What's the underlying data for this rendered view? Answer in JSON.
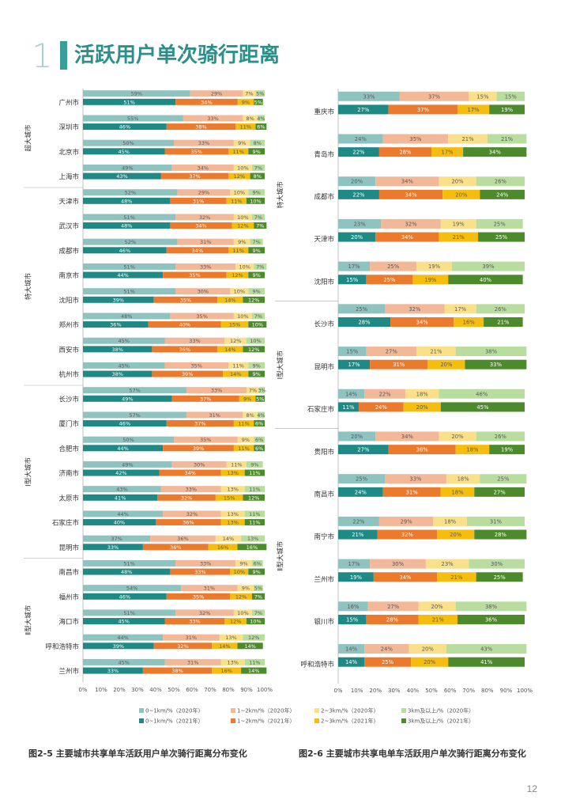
{
  "page": {
    "section_number": "1",
    "title": "活跃用户单次骑行距离",
    "page_number": "12",
    "caption_left": "图2-5 主要城市共享单车活跃用户单次骑行距离分布变化",
    "caption_right": "图2-6 主要城市共享电单车活跃用户单次骑行距离分布变化"
  },
  "chart_data": [
    {
      "type": "bar",
      "orientation": "horizontal",
      "stacked": true,
      "percent": true,
      "xlim": [
        0,
        100
      ],
      "x_ticks": [
        "0%",
        "10%",
        "20%",
        "30%",
        "40%",
        "50%",
        "60%",
        "70%",
        "80%",
        "90%",
        "100%"
      ],
      "series_labels_2020": [
        "0~1km/%（2020年）",
        "1~2km/%（2020年）",
        "2~3km/%（2020年）",
        "3km及以上/%（2020年）"
      ],
      "series_labels_2021": [
        "0~1km/%（2021年）",
        "1~2km/%（2021年）",
        "2~3km/%（2021年）",
        "3km及以上/%（2021年）"
      ],
      "colors_2020": [
        "#8ec3bf",
        "#f2b897",
        "#fbe08a",
        "#b9dc9f"
      ],
      "colors_2021": [
        "#1f8a85",
        "#ec7a2c",
        "#f5be0f",
        "#4d8a2b"
      ],
      "groups": [
        {
          "label": "超大城市",
          "cities": [
            {
              "name": "广州市",
              "y2020": [
                59,
                29,
                7,
                5
              ],
              "y2021": [
                51,
                34,
                9,
                5
              ]
            },
            {
              "name": "深圳市",
              "y2020": [
                55,
                33,
                8,
                4
              ],
              "y2021": [
                46,
                38,
                11,
                6
              ]
            },
            {
              "name": "北京市",
              "y2020": [
                50,
                33,
                9,
                8
              ],
              "y2021": [
                45,
                35,
                11,
                9
              ]
            },
            {
              "name": "上海市",
              "y2020": [
                49,
                34,
                10,
                7
              ],
              "y2021": [
                43,
                37,
                12,
                8
              ]
            }
          ]
        },
        {
          "label": "特大城市",
          "cities": [
            {
              "name": "天津市",
              "y2020": [
                52,
                29,
                10,
                9
              ],
              "y2021": [
                48,
                31,
                11,
                10
              ]
            },
            {
              "name": "武汉市",
              "y2020": [
                51,
                32,
                10,
                7
              ],
              "y2021": [
                48,
                34,
                12,
                7
              ]
            },
            {
              "name": "成都市",
              "y2020": [
                52,
                31,
                9,
                7
              ],
              "y2021": [
                46,
                34,
                11,
                9
              ]
            },
            {
              "name": "南京市",
              "y2020": [
                51,
                33,
                10,
                7
              ],
              "y2021": [
                44,
                35,
                12,
                9
              ]
            },
            {
              "name": "沈阳市",
              "y2020": [
                51,
                30,
                10,
                9
              ],
              "y2021": [
                39,
                35,
                14,
                12
              ]
            },
            {
              "name": "郑州市",
              "y2020": [
                48,
                35,
                10,
                7
              ],
              "y2021": [
                36,
                40,
                15,
                10
              ]
            },
            {
              "name": "西安市",
              "y2020": [
                45,
                33,
                12,
                10
              ],
              "y2021": [
                38,
                36,
                14,
                12
              ]
            },
            {
              "name": "杭州市",
              "y2020": [
                45,
                35,
                11,
                9
              ],
              "y2021": [
                38,
                39,
                14,
                9
              ]
            }
          ]
        },
        {
          "label": "Ⅰ型大城市",
          "cities": [
            {
              "name": "长沙市",
              "y2020": [
                57,
                33,
                7,
                3
              ],
              "y2021": [
                49,
                37,
                9,
                5
              ]
            },
            {
              "name": "厦门市",
              "y2020": [
                57,
                31,
                8,
                4
              ],
              "y2021": [
                46,
                37,
                11,
                6
              ]
            },
            {
              "name": "合肥市",
              "y2020": [
                50,
                35,
                9,
                6
              ],
              "y2021": [
                44,
                39,
                11,
                6
              ]
            },
            {
              "name": "济南市",
              "y2020": [
                49,
                30,
                11,
                9
              ],
              "y2021": [
                42,
                34,
                13,
                11
              ]
            },
            {
              "name": "太原市",
              "y2020": [
                43,
                33,
                13,
                11
              ],
              "y2021": [
                41,
                32,
                15,
                12
              ]
            },
            {
              "name": "石家庄市",
              "y2020": [
                44,
                32,
                13,
                11
              ],
              "y2021": [
                40,
                36,
                13,
                11
              ]
            },
            {
              "name": "昆明市",
              "y2020": [
                37,
                36,
                14,
                13
              ],
              "y2021": [
                33,
                36,
                16,
                16
              ]
            }
          ]
        },
        {
          "label": "Ⅱ型大城市",
          "cities": [
            {
              "name": "南昌市",
              "y2020": [
                51,
                33,
                9,
                6
              ],
              "y2021": [
                48,
                33,
                10,
                9
              ]
            },
            {
              "name": "福州市",
              "y2020": [
                54,
                31,
                9,
                5
              ],
              "y2021": [
                46,
                35,
                12,
                7
              ]
            },
            {
              "name": "海口市",
              "y2020": [
                51,
                32,
                10,
                7
              ],
              "y2021": [
                45,
                33,
                12,
                10
              ]
            },
            {
              "name": "呼和浩特市",
              "y2020": [
                44,
                31,
                13,
                12
              ],
              "y2021": [
                39,
                32,
                14,
                14
              ]
            },
            {
              "name": "兰州市",
              "y2020": [
                45,
                31,
                13,
                11
              ],
              "y2021": [
                33,
                38,
                16,
                14
              ]
            }
          ]
        }
      ]
    },
    {
      "type": "bar",
      "orientation": "horizontal",
      "stacked": true,
      "percent": true,
      "xlim": [
        0,
        100
      ],
      "x_ticks": [
        "0%",
        "10%",
        "20%",
        "30%",
        "40%",
        "50%",
        "60%",
        "70%",
        "80%",
        "90%",
        "100%"
      ],
      "groups": [
        {
          "label": "特大城市",
          "cities": [
            {
              "name": "重庆市",
              "y2020": [
                33,
                37,
                15,
                15
              ],
              "y2021": [
                27,
                37,
                17,
                19
              ]
            },
            {
              "name": "青岛市",
              "y2020": [
                24,
                35,
                21,
                21
              ],
              "y2021": [
                22,
                28,
                17,
                34
              ]
            },
            {
              "name": "成都市",
              "y2020": [
                20,
                34,
                20,
                26
              ],
              "y2021": [
                22,
                34,
                20,
                24
              ]
            },
            {
              "name": "天津市",
              "y2020": [
                23,
                32,
                19,
                25
              ],
              "y2021": [
                20,
                34,
                21,
                25
              ]
            },
            {
              "name": "沈阳市",
              "y2020": [
                17,
                25,
                19,
                39
              ],
              "y2021": [
                15,
                25,
                19,
                40
              ]
            }
          ]
        },
        {
          "label": "Ⅰ型大城市",
          "cities": [
            {
              "name": "长沙市",
              "y2020": [
                25,
                32,
                17,
                26
              ],
              "y2021": [
                28,
                34,
                16,
                21
              ]
            },
            {
              "name": "昆明市",
              "y2020": [
                15,
                27,
                21,
                38
              ],
              "y2021": [
                17,
                31,
                20,
                33
              ]
            },
            {
              "name": "石家庄市",
              "y2020": [
                14,
                22,
                18,
                46
              ],
              "y2021": [
                11,
                24,
                20,
                45
              ]
            }
          ]
        },
        {
          "label": "Ⅱ型大城市",
          "cities": [
            {
              "name": "贵阳市",
              "y2020": [
                20,
                34,
                20,
                26
              ],
              "y2021": [
                27,
                36,
                18,
                19
              ]
            },
            {
              "name": "南昌市",
              "y2020": [
                25,
                33,
                18,
                25
              ],
              "y2021": [
                24,
                31,
                18,
                27
              ]
            },
            {
              "name": "南宁市",
              "y2020": [
                22,
                29,
                18,
                31
              ],
              "y2021": [
                21,
                32,
                20,
                28
              ]
            },
            {
              "name": "兰州市",
              "y2020": [
                17,
                30,
                23,
                30
              ],
              "y2021": [
                19,
                34,
                21,
                25
              ]
            },
            {
              "name": "银川市",
              "y2020": [
                16,
                27,
                20,
                38
              ],
              "y2021": [
                15,
                28,
                21,
                36
              ]
            },
            {
              "name": "呼和浩特市",
              "y2020": [
                14,
                24,
                20,
                43
              ],
              "y2021": [
                14,
                25,
                20,
                41
              ]
            }
          ]
        }
      ]
    }
  ]
}
